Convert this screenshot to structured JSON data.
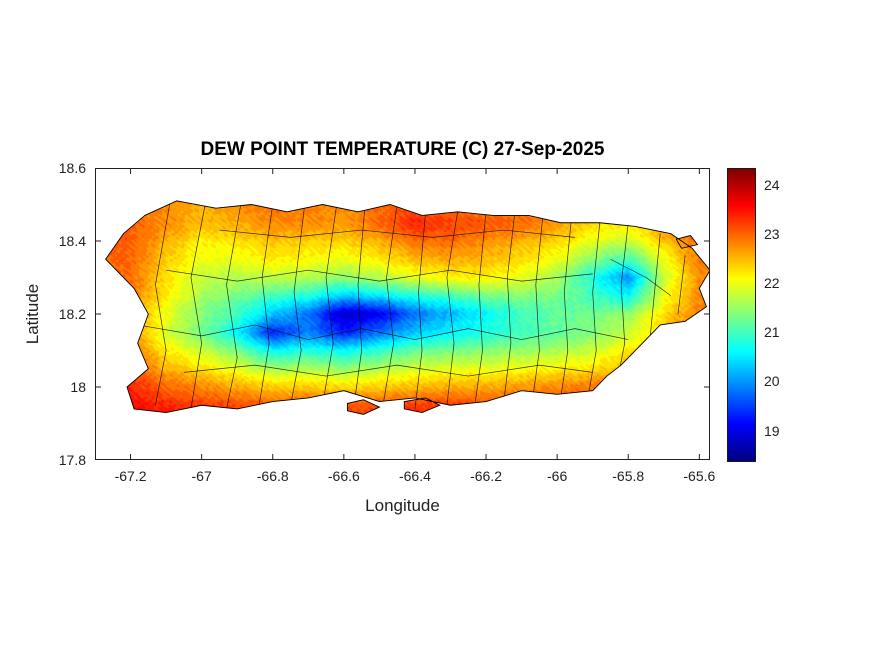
{
  "figure": {
    "title": "DEW POINT TEMPERATURE (C) 27-Sep-2025",
    "xlabel": "Longitude",
    "ylabel": "Latitude",
    "background": "#ffffff",
    "axis_color": "#231f20"
  },
  "chart_data": {
    "type": "heatmap",
    "title": "DEW POINT TEMPERATURE (C) 27-Sep-2025",
    "subtitle": "",
    "xlabel": "Longitude",
    "ylabel": "Latitude",
    "xlim": [
      -67.3,
      -65.57
    ],
    "ylim": [
      17.8,
      18.6
    ],
    "grid_lines": false,
    "legend": "colorbar-right",
    "colormap": "jet",
    "clim": [
      18.4,
      24.35
    ],
    "xticks": [
      {
        "value": -67.2,
        "label": "-67.2"
      },
      {
        "value": -67.0,
        "label": "-67"
      },
      {
        "value": -66.8,
        "label": "-66.8"
      },
      {
        "value": -66.6,
        "label": "-66.6"
      },
      {
        "value": -66.4,
        "label": "-66.4"
      },
      {
        "value": -66.2,
        "label": "-66.2"
      },
      {
        "value": -66.0,
        "label": "-66"
      },
      {
        "value": -65.8,
        "label": "-65.8"
      },
      {
        "value": -65.6,
        "label": "-65.6"
      }
    ],
    "yticks": [
      {
        "value": 17.8,
        "label": "17.8"
      },
      {
        "value": 18.0,
        "label": "18"
      },
      {
        "value": 18.2,
        "label": "18.2"
      },
      {
        "value": 18.4,
        "label": "18.4"
      },
      {
        "value": 18.6,
        "label": "18.6"
      }
    ],
    "colorbar_ticks": [
      {
        "value": 19,
        "label": "19"
      },
      {
        "value": 20,
        "label": "20"
      },
      {
        "value": 21,
        "label": "21"
      },
      {
        "value": 22,
        "label": "22"
      },
      {
        "value": 23,
        "label": "23"
      },
      {
        "value": 24,
        "label": "24"
      }
    ],
    "grid": {
      "lon": [
        -67.2,
        -67.1,
        -67.0,
        -66.9,
        -66.8,
        -66.7,
        -66.6,
        -66.5,
        -66.4,
        -66.3,
        -66.2,
        -66.1,
        -66.0,
        -65.9,
        -65.8,
        -65.7,
        -65.6
      ],
      "lat": [
        18.5,
        18.45,
        18.4,
        18.35,
        18.3,
        18.25,
        18.2,
        18.15,
        18.1,
        18.05,
        18.0,
        17.95
      ],
      "values": [
        [
          23.0,
          22.8,
          22.6,
          22.8,
          23.0,
          22.9,
          22.8,
          23.0,
          23.2,
          23.0,
          22.9,
          23.0,
          22.8,
          22.6,
          22.5,
          22.8,
          23.0
        ],
        [
          23.0,
          22.8,
          22.5,
          22.6,
          22.8,
          22.8,
          22.7,
          23.0,
          23.4,
          23.2,
          23.1,
          23.0,
          22.7,
          22.3,
          22.2,
          22.7,
          23.0
        ],
        [
          23.1,
          22.6,
          22.2,
          22.3,
          22.5,
          22.4,
          22.4,
          22.6,
          23.0,
          23.0,
          22.8,
          22.6,
          22.4,
          22.0,
          21.8,
          22.5,
          23.0
        ],
        [
          23.0,
          22.4,
          22.0,
          22.0,
          22.2,
          22.1,
          22.0,
          22.2,
          22.5,
          22.6,
          22.5,
          22.3,
          22.0,
          21.4,
          21.0,
          22.0,
          22.9
        ],
        [
          23.0,
          22.3,
          21.8,
          21.7,
          21.8,
          21.7,
          21.5,
          21.7,
          22.0,
          22.2,
          22.2,
          22.0,
          21.6,
          20.8,
          20.0,
          21.8,
          22.8
        ],
        [
          22.9,
          22.2,
          21.6,
          21.3,
          21.0,
          20.8,
          20.3,
          20.5,
          20.8,
          21.0,
          21.3,
          21.4,
          21.3,
          21.0,
          20.6,
          22.0,
          22.8
        ],
        [
          22.8,
          22.0,
          21.4,
          21.0,
          20.3,
          19.8,
          18.8,
          19.0,
          19.8,
          20.2,
          20.6,
          21.0,
          21.2,
          21.3,
          21.5,
          22.3,
          22.9
        ],
        [
          22.8,
          21.9,
          21.3,
          20.6,
          19.3,
          19.9,
          19.3,
          19.8,
          20.3,
          20.6,
          20.8,
          21.0,
          21.2,
          21.4,
          21.8,
          22.4,
          23.0
        ],
        [
          22.9,
          22.2,
          21.8,
          21.3,
          20.6,
          20.8,
          20.6,
          20.9,
          21.2,
          21.3,
          21.4,
          21.5,
          21.6,
          21.8,
          22.2,
          22.6,
          23.1
        ],
        [
          23.1,
          22.6,
          22.3,
          22.0,
          21.6,
          21.7,
          21.5,
          21.7,
          21.9,
          22.0,
          22.0,
          22.1,
          22.2,
          22.3,
          22.6,
          22.9,
          23.2
        ],
        [
          23.4,
          23.0,
          22.8,
          22.6,
          22.4,
          22.4,
          22.3,
          22.4,
          22.5,
          22.6,
          22.6,
          22.7,
          22.8,
          22.9,
          23.1,
          23.2,
          23.3
        ],
        [
          23.6,
          23.4,
          23.3,
          23.2,
          23.1,
          23.2,
          23.1,
          23.2,
          23.3,
          23.3,
          23.2,
          23.3,
          23.3,
          23.4,
          23.4,
          23.3,
          23.3
        ]
      ]
    },
    "coastline": [
      [
        -67.16,
        18.47
      ],
      [
        -67.07,
        18.51
      ],
      [
        -66.96,
        18.49
      ],
      [
        -66.86,
        18.5
      ],
      [
        -66.76,
        18.48
      ],
      [
        -66.66,
        18.5
      ],
      [
        -66.56,
        18.48
      ],
      [
        -66.47,
        18.5
      ],
      [
        -66.38,
        18.47
      ],
      [
        -66.28,
        18.48
      ],
      [
        -66.18,
        18.47
      ],
      [
        -66.08,
        18.47
      ],
      [
        -65.99,
        18.45
      ],
      [
        -65.88,
        18.45
      ],
      [
        -65.78,
        18.44
      ],
      [
        -65.68,
        18.42
      ],
      [
        -65.62,
        18.38
      ],
      [
        -65.57,
        18.32
      ],
      [
        -65.6,
        18.27
      ],
      [
        -65.58,
        18.22
      ],
      [
        -65.64,
        18.18
      ],
      [
        -65.71,
        18.17
      ],
      [
        -65.75,
        18.13
      ],
      [
        -65.82,
        18.06
      ],
      [
        -65.86,
        18.03
      ],
      [
        -65.9,
        17.99
      ],
      [
        -66.0,
        17.98
      ],
      [
        -66.1,
        17.99
      ],
      [
        -66.2,
        17.96
      ],
      [
        -66.3,
        17.95
      ],
      [
        -66.4,
        17.97
      ],
      [
        -66.5,
        17.96
      ],
      [
        -66.6,
        17.99
      ],
      [
        -66.7,
        17.97
      ],
      [
        -66.8,
        17.96
      ],
      [
        -66.9,
        17.94
      ],
      [
        -67.0,
        17.95
      ],
      [
        -67.1,
        17.93
      ],
      [
        -67.19,
        17.94
      ],
      [
        -67.21,
        18.0
      ],
      [
        -67.15,
        18.05
      ],
      [
        -67.18,
        18.12
      ],
      [
        -67.15,
        18.2
      ],
      [
        -67.19,
        18.27
      ],
      [
        -67.27,
        18.35
      ],
      [
        -67.22,
        18.42
      ]
    ],
    "islets": [
      [
        [
          -66.59,
          17.955
        ],
        [
          -66.545,
          17.965
        ],
        [
          -66.5,
          17.945
        ],
        [
          -66.545,
          17.925
        ],
        [
          -66.59,
          17.935
        ]
      ],
      [
        [
          -66.43,
          17.96
        ],
        [
          -66.37,
          17.97
        ],
        [
          -66.33,
          17.95
        ],
        [
          -66.38,
          17.93
        ],
        [
          -66.43,
          17.94
        ]
      ],
      [
        [
          -65.665,
          18.405
        ],
        [
          -65.625,
          18.415
        ],
        [
          -65.605,
          18.39
        ],
        [
          -65.65,
          18.38
        ]
      ]
    ],
    "boundaries": [
      [
        [
          -67.13,
          17.95
        ],
        [
          -67.1,
          18.1
        ],
        [
          -67.13,
          18.28
        ],
        [
          -67.09,
          18.5
        ]
      ],
      [
        [
          -67.03,
          17.94
        ],
        [
          -67.0,
          18.12
        ],
        [
          -67.03,
          18.3
        ],
        [
          -66.99,
          18.5
        ]
      ],
      [
        [
          -66.93,
          17.94
        ],
        [
          -66.9,
          18.08
        ],
        [
          -66.93,
          18.28
        ],
        [
          -66.89,
          18.5
        ]
      ],
      [
        [
          -66.84,
          17.94
        ],
        [
          -66.81,
          18.12
        ],
        [
          -66.83,
          18.3
        ],
        [
          -66.8,
          18.5
        ]
      ],
      [
        [
          -66.75,
          17.95
        ],
        [
          -66.72,
          18.1
        ],
        [
          -66.74,
          18.26
        ],
        [
          -66.71,
          18.5
        ]
      ],
      [
        [
          -66.66,
          17.95
        ],
        [
          -66.63,
          18.12
        ],
        [
          -66.65,
          18.3
        ],
        [
          -66.62,
          18.5
        ]
      ],
      [
        [
          -66.57,
          17.96
        ],
        [
          -66.55,
          18.1
        ],
        [
          -66.56,
          18.28
        ],
        [
          -66.54,
          18.5
        ]
      ],
      [
        [
          -66.49,
          17.95
        ],
        [
          -66.46,
          18.12
        ],
        [
          -66.48,
          18.3
        ],
        [
          -66.45,
          18.5
        ]
      ],
      [
        [
          -66.4,
          17.94
        ],
        [
          -66.38,
          18.1
        ],
        [
          -66.39,
          18.26
        ],
        [
          -66.37,
          18.48
        ]
      ],
      [
        [
          -66.31,
          17.95
        ],
        [
          -66.29,
          18.12
        ],
        [
          -66.31,
          18.3
        ],
        [
          -66.28,
          18.48
        ]
      ],
      [
        [
          -66.23,
          17.96
        ],
        [
          -66.21,
          18.1
        ],
        [
          -66.22,
          18.28
        ],
        [
          -66.2,
          18.48
        ]
      ],
      [
        [
          -66.15,
          17.96
        ],
        [
          -66.13,
          18.12
        ],
        [
          -66.14,
          18.3
        ],
        [
          -66.12,
          18.47
        ]
      ],
      [
        [
          -66.07,
          17.96
        ],
        [
          -66.05,
          18.1
        ],
        [
          -66.06,
          18.28
        ],
        [
          -66.04,
          18.47
        ]
      ],
      [
        [
          -65.99,
          17.97
        ],
        [
          -65.97,
          18.1
        ],
        [
          -65.98,
          18.26
        ],
        [
          -65.96,
          18.46
        ]
      ],
      [
        [
          -65.91,
          17.99
        ],
        [
          -65.89,
          18.1
        ],
        [
          -65.9,
          18.26
        ],
        [
          -65.88,
          18.45
        ]
      ],
      [
        [
          -65.83,
          18.02
        ],
        [
          -65.81,
          18.12
        ],
        [
          -65.82,
          18.28
        ],
        [
          -65.8,
          18.45
        ]
      ],
      [
        [
          -65.74,
          18.12
        ],
        [
          -65.73,
          18.22
        ],
        [
          -65.72,
          18.32
        ],
        [
          -65.71,
          18.42
        ]
      ],
      [
        [
          -65.66,
          18.2
        ],
        [
          -65.65,
          18.28
        ],
        [
          -65.64,
          18.36
        ]
      ],
      [
        [
          -67.18,
          18.17
        ],
        [
          -67.0,
          18.14
        ],
        [
          -66.85,
          18.17
        ],
        [
          -66.7,
          18.13
        ],
        [
          -66.55,
          18.16
        ],
        [
          -66.4,
          18.13
        ],
        [
          -66.25,
          18.16
        ],
        [
          -66.1,
          18.13
        ],
        [
          -65.95,
          18.16
        ],
        [
          -65.8,
          18.13
        ]
      ],
      [
        [
          -67.1,
          18.32
        ],
        [
          -66.9,
          18.29
        ],
        [
          -66.7,
          18.32
        ],
        [
          -66.5,
          18.29
        ],
        [
          -66.3,
          18.32
        ],
        [
          -66.1,
          18.29
        ],
        [
          -65.9,
          18.31
        ]
      ],
      [
        [
          -67.05,
          18.04
        ],
        [
          -66.85,
          18.06
        ],
        [
          -66.65,
          18.03
        ],
        [
          -66.45,
          18.06
        ],
        [
          -66.25,
          18.03
        ],
        [
          -66.05,
          18.06
        ],
        [
          -65.9,
          18.04
        ]
      ],
      [
        [
          -66.95,
          18.43
        ],
        [
          -66.75,
          18.41
        ],
        [
          -66.55,
          18.43
        ],
        [
          -66.35,
          18.41
        ],
        [
          -66.15,
          18.43
        ],
        [
          -65.95,
          18.41
        ]
      ],
      [
        [
          -65.85,
          18.35
        ],
        [
          -65.75,
          18.3
        ],
        [
          -65.68,
          18.25
        ]
      ]
    ]
  }
}
